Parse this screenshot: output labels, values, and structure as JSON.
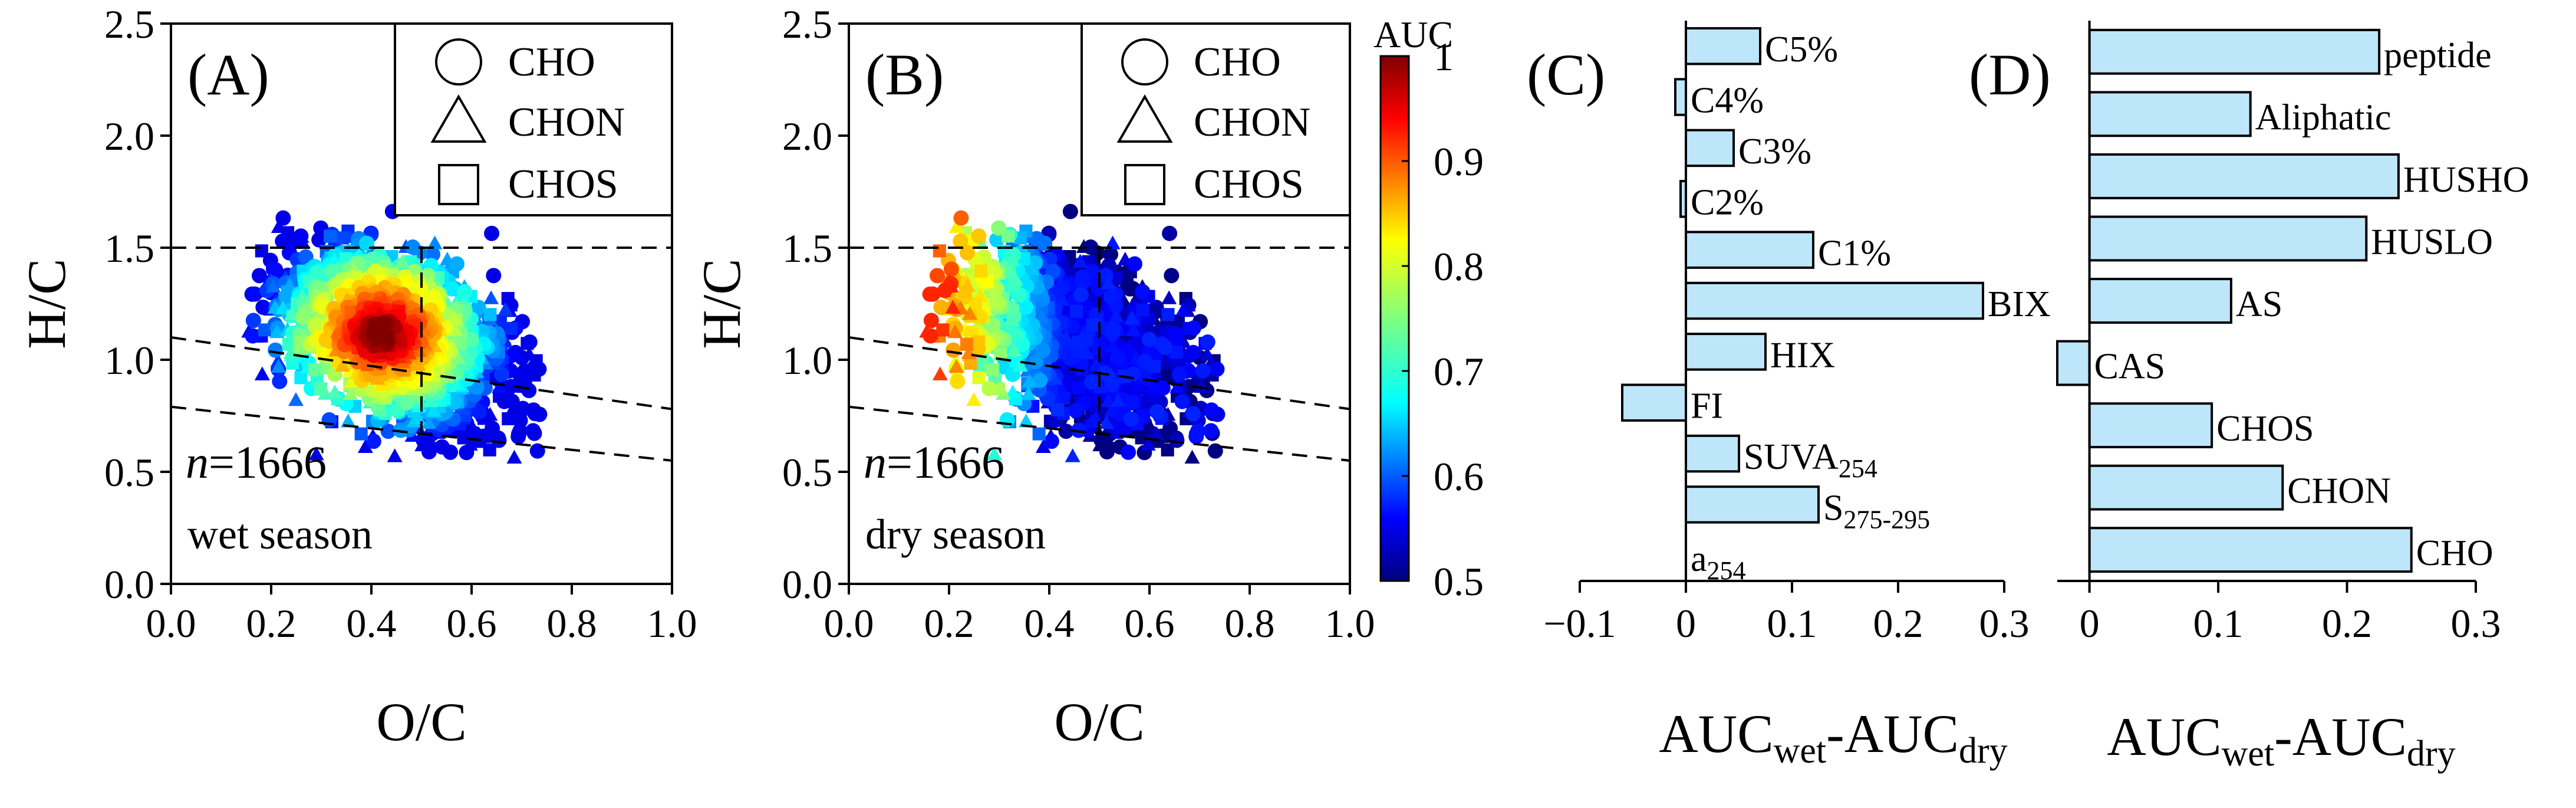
{
  "scatter_panels": {
    "xlabel": "O/C",
    "ylabel": "H/C",
    "xticks": [
      "0.0",
      "0.2",
      "0.4",
      "0.6",
      "0.8",
      "1.0"
    ],
    "yticks": [
      "0.0",
      "0.5",
      "1.0",
      "1.5",
      "2.0",
      "2.5"
    ],
    "legend": [
      "CHO",
      "CHON",
      "CHOS"
    ],
    "n_prefix": "n",
    "n_value": "=1666",
    "colorbar": {
      "title": "AUC",
      "ticks": [
        "1",
        "0.9",
        "0.8",
        "0.7",
        "0.6",
        "0.5"
      ]
    }
  },
  "chart_data": [
    {
      "type": "scatter",
      "panel_label": "(A)",
      "season": "wet season",
      "xlim": [
        0,
        1
      ],
      "ylim": [
        0,
        2.5
      ],
      "n": 1666,
      "color_scale": {
        "name": "jet",
        "min": 0.5,
        "max": 1.0
      },
      "cloud": {
        "center_oc": 0.42,
        "center_hc": 1.12,
        "auc_at_center": 1.0,
        "auc_at_edge": 0.6
      },
      "reference_lines": [
        {
          "x1": 0.0,
          "y1": 1.5,
          "x2": 1.0,
          "y2": 1.5
        },
        {
          "x1": 0.5,
          "y1": 1.5,
          "x2": 0.5,
          "y2": 0.67
        },
        {
          "x1": 0.0,
          "y1": 1.1,
          "x2": 1.0,
          "y2": 0.78
        },
        {
          "x1": 0.0,
          "y1": 0.79,
          "x2": 1.0,
          "y2": 0.55
        }
      ],
      "legend_placement": "top-right"
    },
    {
      "type": "scatter",
      "panel_label": "(B)",
      "season": "dry season",
      "xlim": [
        0,
        1
      ],
      "ylim": [
        0,
        2.5
      ],
      "n": 1666,
      "color_scale": {
        "name": "jet",
        "min": 0.5,
        "max": 1.0
      },
      "cloud": {
        "center_oc": 0.48,
        "center_hc": 1.1,
        "auc_at_center": 0.52,
        "auc_left_edge": 0.85
      },
      "reference_lines": [
        {
          "x1": 0.0,
          "y1": 1.5,
          "x2": 1.0,
          "y2": 1.5
        },
        {
          "x1": 0.5,
          "y1": 1.5,
          "x2": 0.5,
          "y2": 0.67
        },
        {
          "x1": 0.0,
          "y1": 1.1,
          "x2": 1.0,
          "y2": 0.78
        },
        {
          "x1": 0.0,
          "y1": 0.79,
          "x2": 1.0,
          "y2": 0.55
        }
      ],
      "legend_placement": "top-right"
    },
    {
      "type": "bar",
      "orientation": "horizontal",
      "panel_label": "(C)",
      "categories": [
        "C5%",
        "C4%",
        "C3%",
        "C2%",
        "C1%",
        "BIX",
        "HIX",
        "FI",
        "SUVA254",
        "S275-295",
        "a254"
      ],
      "values": [
        0.07,
        -0.01,
        0.045,
        -0.005,
        0.12,
        0.28,
        0.075,
        -0.06,
        0.05,
        0.125,
        0.0
      ],
      "xlim": [
        -0.1,
        0.3
      ],
      "xticks": [
        "−0.1",
        "0",
        "0.1",
        "0.2",
        "0.3"
      ],
      "xlabel_main": "AUC",
      "xlabel_sub1": "wet",
      "xlabel_mid": "-AUC",
      "xlabel_sub2": "dry",
      "bar_color": "#bde6fb"
    },
    {
      "type": "bar",
      "orientation": "horizontal",
      "panel_label": "(D)",
      "categories": [
        "peptide",
        "Aliphatic",
        "HUSHO",
        "HUSLO",
        "AS",
        "CAS",
        "CHOS",
        "CHON",
        "CHO"
      ],
      "values": [
        0.225,
        0.125,
        0.24,
        0.215,
        0.11,
        -0.025,
        0.095,
        0.15,
        0.25
      ],
      "xlim": [
        -0.025,
        0.3
      ],
      "xticks": [
        "0",
        "0.1",
        "0.2",
        "0.3"
      ],
      "xlabel_main": "AUC",
      "xlabel_sub1": "wet",
      "xlabel_mid": "-AUC",
      "xlabel_sub2": "dry",
      "bar_color": "#bde6fb"
    }
  ],
  "label_parts": {
    "suva_main": "SUVA",
    "suva_sub": "254",
    "s_main": "S",
    "s_sub": "275-295",
    "a_main": "a",
    "a_sub": "254"
  }
}
